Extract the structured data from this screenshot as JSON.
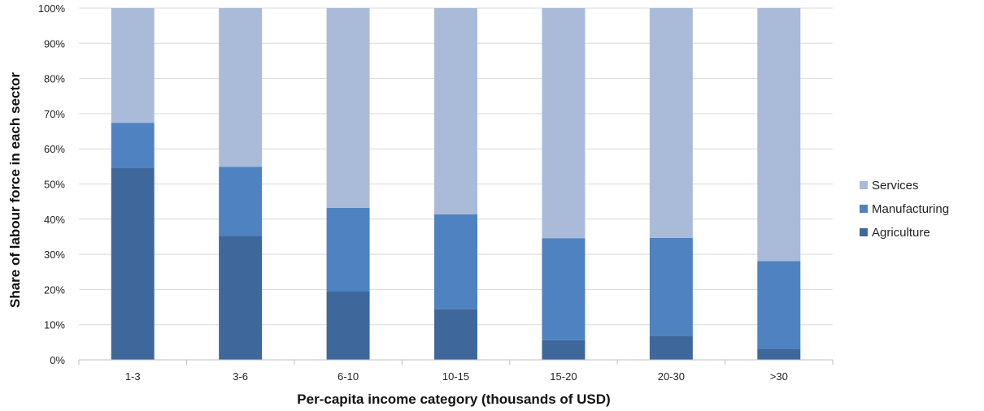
{
  "chart_data": {
    "type": "bar",
    "stacked": true,
    "title": "",
    "xlabel": "Per-capita income category (thousands of USD)",
    "ylabel": "Share of labour force in each sector",
    "ylim": [
      0,
      100
    ],
    "y_unit": "%",
    "yticks": [
      "0%",
      "10%",
      "20%",
      "30%",
      "40%",
      "50%",
      "60%",
      "70%",
      "80%",
      "90%",
      "100%"
    ],
    "grid": true,
    "legend_position": "right",
    "categories": [
      "1-3",
      "3-6",
      "6-10",
      "10-15",
      "15-20",
      "20-30",
      ">30"
    ],
    "series": [
      {
        "name": "Agriculture",
        "color": "#3e689c",
        "values": [
          54.5,
          35.3,
          19.4,
          14.4,
          5.6,
          6.7,
          3.1
        ]
      },
      {
        "name": "Manufacturing",
        "color": "#4f82c0",
        "values": [
          12.9,
          19.6,
          23.8,
          27.0,
          29.0,
          28.0,
          25.0
        ]
      },
      {
        "name": "Services",
        "color": "#a9bbd9",
        "values": [
          32.6,
          45.1,
          56.8,
          58.6,
          65.4,
          65.3,
          71.9
        ]
      }
    ],
    "legend_order": [
      "Services",
      "Manufacturing",
      "Agriculture"
    ]
  }
}
